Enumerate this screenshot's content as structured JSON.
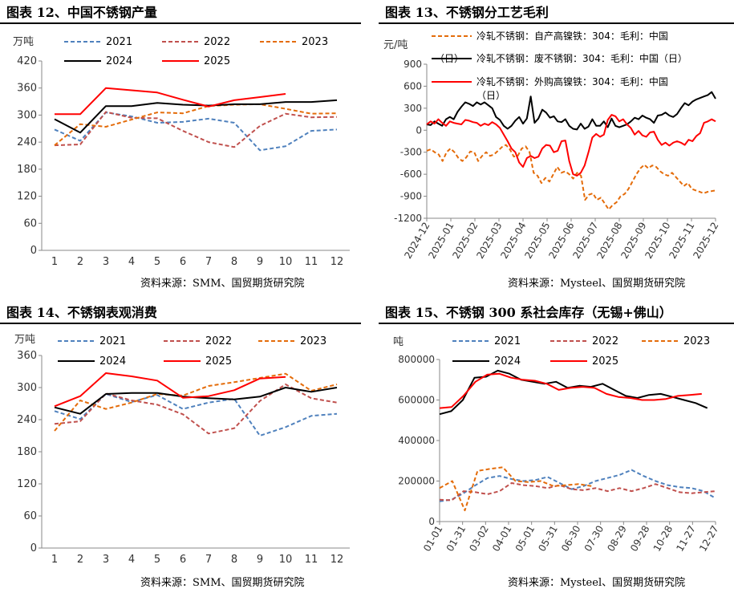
{
  "source_labels": {
    "chart12": "资料来源：SMM、国贸期货研究院",
    "chart13": "资料来源：Mysteel、国贸期货研究院",
    "chart14": "资料来源：SMM、国贸期货研究院",
    "chart15": "资料来源：Mysteel、国贸期货研究院"
  },
  "chart_data": [
    {
      "id": "chart12",
      "type": "line",
      "title": "图表 12、中国不锈钢产量",
      "ylabel": "万吨",
      "ylim": [
        0,
        420
      ],
      "yticks": [
        0,
        60,
        120,
        180,
        240,
        300,
        360,
        420
      ],
      "categories": [
        "1",
        "2",
        "3",
        "4",
        "5",
        "6",
        "7",
        "8",
        "9",
        "10",
        "11",
        "12"
      ],
      "series": [
        {
          "name": "2021",
          "color": "#4f81bd",
          "dash": "dashed",
          "values": [
            268,
            243,
            306,
            297,
            283,
            285,
            292,
            283,
            222,
            231,
            265,
            268
          ]
        },
        {
          "name": "2022",
          "color": "#c0504d",
          "dash": "dashed",
          "values": [
            233,
            235,
            307,
            294,
            293,
            265,
            240,
            229,
            276,
            303,
            295,
            296
          ]
        },
        {
          "name": "2023",
          "color": "#e46c0a",
          "dash": "dashed",
          "values": [
            233,
            280,
            274,
            290,
            306,
            304,
            320,
            323,
            324,
            314,
            303,
            304
          ]
        },
        {
          "name": "2024",
          "color": "#000000",
          "dash": "solid",
          "values": [
            291,
            261,
            320,
            320,
            327,
            323,
            321,
            324,
            324,
            329,
            329,
            333
          ]
        },
        {
          "name": "2025",
          "color": "#ff0000",
          "dash": "solid",
          "values": [
            302,
            302,
            360,
            355,
            350,
            334,
            319,
            333,
            340,
            347,
            null,
            null
          ]
        }
      ]
    },
    {
      "id": "chart13",
      "type": "line",
      "title": "图表 13、不锈钢分工艺毛利",
      "ylabel": "元/吨",
      "ylim": [
        -1200,
        900
      ],
      "yticks": [
        -1200,
        -900,
        -600,
        -300,
        0,
        300,
        600,
        900
      ],
      "xticks": [
        "2024-12",
        "2025-01",
        "2025-02",
        "2025-03",
        "2025-04",
        "2025-05",
        "2025-06",
        "2025-07",
        "2025-08",
        "2025-09",
        "2025-10",
        "2025-11",
        "2025-12"
      ],
      "series": [
        {
          "name": "冷轧不锈钢：自产高镍铁：304：毛利：中国（日）",
          "color": "#e46c0a",
          "dash": "dashed",
          "values": [
            -280,
            -260,
            -300,
            -330,
            -420,
            -300,
            -250,
            -300,
            -380,
            -420,
            -370,
            -290,
            -300,
            -420,
            -350,
            -300,
            -350,
            -330,
            -280,
            -230,
            -200,
            -260,
            -360,
            -350,
            -250,
            -220,
            -300,
            -580,
            -620,
            -720,
            -650,
            -700,
            -600,
            -500,
            -580,
            -560,
            -600,
            -660,
            -580,
            -620,
            -950,
            -880,
            -860,
            -950,
            -920,
            -1000,
            -1080,
            -1020,
            -980,
            -900,
            -870,
            -800,
            -700,
            -600,
            -520,
            -470,
            -520,
            -480,
            -500,
            -560,
            -600,
            -620,
            -580,
            -640,
            -700,
            -760,
            -720,
            -800,
            -820,
            -840,
            -860,
            -840,
            -830,
            -820
          ]
        },
        {
          "name": "冷轧不锈钢：废不锈钢：304：毛利：中国（日）",
          "color": "#000000",
          "dash": "solid",
          "values": [
            80,
            70,
            120,
            90,
            60,
            150,
            180,
            150,
            250,
            320,
            380,
            360,
            330,
            380,
            350,
            380,
            340,
            300,
            180,
            140,
            60,
            20,
            60,
            130,
            180,
            90,
            160,
            460,
            100,
            160,
            280,
            240,
            170,
            190,
            120,
            110,
            150,
            60,
            20,
            10,
            90,
            20,
            50,
            150,
            60,
            60,
            120,
            40,
            160,
            60,
            40,
            60,
            80,
            120,
            170,
            150,
            200,
            170,
            150,
            100,
            200,
            210,
            240,
            200,
            180,
            220,
            300,
            370,
            340,
            390,
            420,
            440,
            460,
            480,
            520,
            430
          ]
        },
        {
          "name": "冷轧不锈钢：外购高镍铁：304：毛利：中国（日）",
          "color": "#ff0000",
          "dash": "solid",
          "values": [
            80,
            120,
            90,
            150,
            100,
            60,
            120,
            100,
            90,
            80,
            140,
            130,
            110,
            100,
            60,
            90,
            70,
            110,
            80,
            30,
            -60,
            -150,
            -250,
            -300,
            -440,
            -500,
            -380,
            -350,
            -380,
            -360,
            -250,
            -200,
            -210,
            -300,
            -280,
            -150,
            -140,
            -420,
            -600,
            -620,
            -580,
            -480,
            -300,
            -100,
            -50,
            -90,
            -60,
            140,
            210,
            190,
            120,
            150,
            80,
            30,
            -60,
            -10,
            -70,
            -90,
            -30,
            -20,
            -130,
            -200,
            -170,
            -210,
            -170,
            -150,
            -170,
            -200,
            -130,
            -150,
            -80,
            -40,
            100,
            120,
            150,
            120
          ]
        }
      ]
    },
    {
      "id": "chart14",
      "type": "line",
      "title": "图表 14、不锈钢表观消费",
      "ylabel": "万吨",
      "ylim": [
        0,
        360
      ],
      "yticks": [
        0,
        60,
        120,
        180,
        240,
        300,
        360
      ],
      "categories": [
        "1",
        "2",
        "3",
        "4",
        "5",
        "6",
        "7",
        "8",
        "9",
        "10",
        "11",
        "12"
      ],
      "series": [
        {
          "name": "2021",
          "color": "#4f81bd",
          "dash": "dashed",
          "values": [
            256,
            241,
            288,
            273,
            286,
            260,
            272,
            279,
            210,
            226,
            247,
            251
          ]
        },
        {
          "name": "2022",
          "color": "#c0504d",
          "dash": "dashed",
          "values": [
            232,
            237,
            289,
            276,
            268,
            250,
            214,
            224,
            275,
            306,
            280,
            272
          ]
        },
        {
          "name": "2023",
          "color": "#e46c0a",
          "dash": "dashed",
          "values": [
            219,
            276,
            260,
            272,
            288,
            285,
            303,
            310,
            318,
            326,
            294,
            306
          ]
        },
        {
          "name": "2024",
          "color": "#000000",
          "dash": "solid",
          "values": [
            263,
            251,
            288,
            290,
            290,
            283,
            280,
            278,
            283,
            300,
            292,
            300
          ]
        },
        {
          "name": "2025",
          "color": "#ff0000",
          "dash": "solid",
          "values": [
            265,
            284,
            327,
            321,
            313,
            281,
            284,
            295,
            317,
            320,
            null,
            null
          ]
        }
      ]
    },
    {
      "id": "chart15",
      "type": "line",
      "title": "图表 15、不锈钢 300 系社会库存（无锡+佛山）",
      "ylabel": "吨",
      "ylim": [
        0,
        800000
      ],
      "yticks": [
        0,
        200000,
        400000,
        600000,
        800000
      ],
      "xticks": [
        "01-01",
        "01-31",
        "03-02",
        "04-01",
        "05-01",
        "05-31",
        "06-30",
        "07-30",
        "08-29",
        "09-28",
        "10-28",
        "11-27",
        "12-27"
      ],
      "series": [
        {
          "name": "2021",
          "color": "#4f81bd",
          "dash": "dashed",
          "values": [
            100000,
            108000,
            140000,
            180000,
            215000,
            225000,
            210000,
            200000,
            205000,
            220000,
            190000,
            160000,
            175000,
            200000,
            215000,
            230000,
            255000,
            225000,
            200000,
            180000,
            170000,
            165000,
            150000,
            115000
          ]
        },
        {
          "name": "2022",
          "color": "#c0504d",
          "dash": "dashed",
          "values": [
            108000,
            105000,
            150000,
            145000,
            135000,
            150000,
            190000,
            180000,
            175000,
            165000,
            180000,
            160000,
            155000,
            165000,
            150000,
            165000,
            150000,
            165000,
            185000,
            165000,
            145000,
            140000,
            145000,
            150000
          ]
        },
        {
          "name": "2023",
          "color": "#e46c0a",
          "dash": "dashed",
          "values": [
            165000,
            200000,
            55000,
            250000,
            260000,
            268000,
            200000,
            195000,
            200000,
            175000,
            180000,
            185000,
            175000
          ]
        },
        {
          "name": "2024",
          "color": "#000000",
          "dash": "solid",
          "values": [
            530000,
            545000,
            600000,
            710000,
            715000,
            745000,
            730000,
            700000,
            690000,
            680000,
            690000,
            660000,
            670000,
            665000,
            680000,
            650000,
            620000,
            610000,
            625000,
            630000,
            615000,
            600000,
            585000,
            560000
          ]
        },
        {
          "name": "2025",
          "color": "#ff0000",
          "dash": "solid",
          "values": [
            560000,
            565000,
            620000,
            690000,
            725000,
            730000,
            710000,
            700000,
            695000,
            680000,
            650000,
            660000,
            665000,
            660000,
            630000,
            615000,
            610000,
            600000,
            600000,
            605000,
            620000,
            625000,
            630000
          ]
        }
      ]
    }
  ]
}
